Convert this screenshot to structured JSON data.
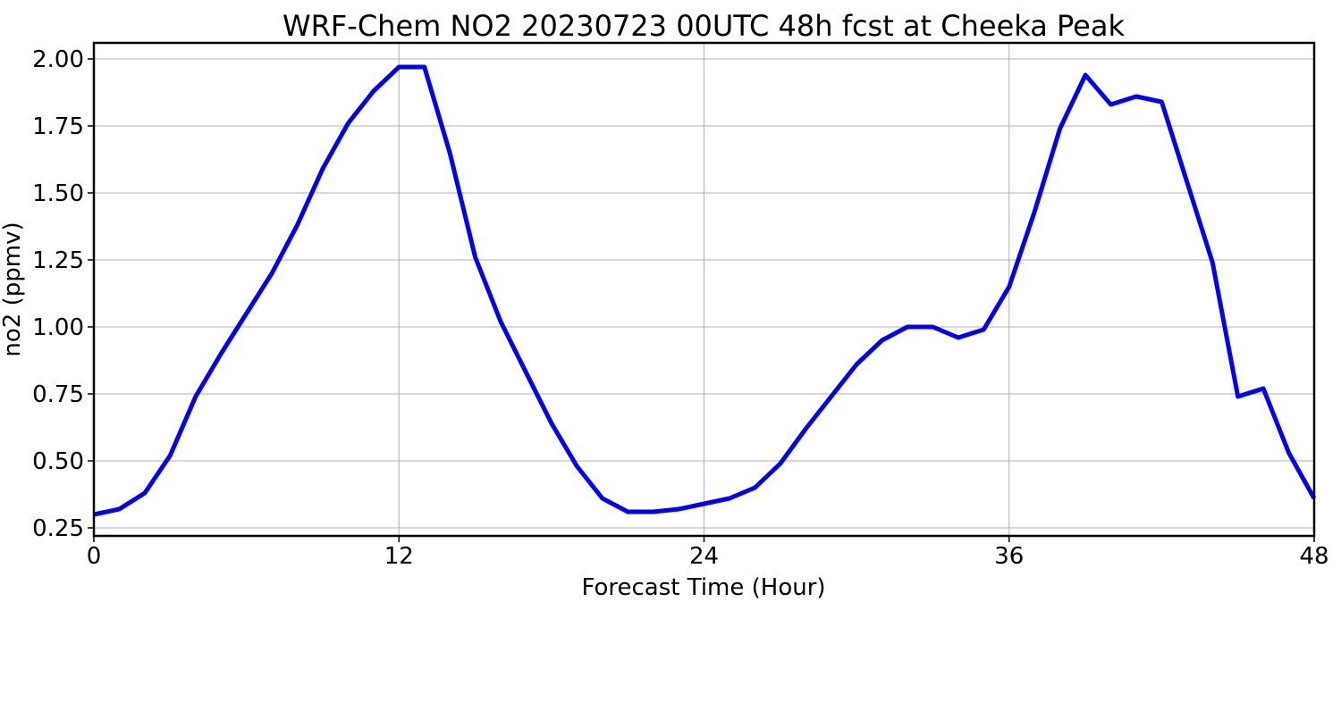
{
  "chart_data": {
    "type": "line",
    "title": "WRF-Chem NO2  20230723 00UTC 48h fcst at Cheeka Peak",
    "xlabel": "Forecast Time (Hour)",
    "ylabel": "no2  (ppmv)",
    "xlim": [
      0,
      48
    ],
    "ylim": [
      0.22,
      2.06
    ],
    "xticks": [
      0,
      12,
      24,
      36,
      48
    ],
    "xtick_labels": [
      "0",
      "12",
      "24",
      "36",
      "48"
    ],
    "yticks": [
      0.25,
      0.5,
      0.75,
      1.0,
      1.25,
      1.5,
      1.75,
      2.0
    ],
    "ytick_labels": [
      "0.25",
      "0.50",
      "0.75",
      "1.00",
      "1.25",
      "1.50",
      "1.75",
      "2.00"
    ],
    "grid": true,
    "series": [
      {
        "color": "#0000ff",
        "x": [
          0,
          1,
          2,
          3,
          4,
          5,
          6,
          7,
          8,
          9,
          10,
          11,
          12,
          13,
          14,
          15,
          16,
          17,
          18,
          19,
          20,
          21,
          22,
          23,
          24,
          25,
          26,
          27,
          28,
          29,
          30,
          31,
          32,
          33,
          34,
          35,
          36,
          37,
          38,
          39,
          40,
          41,
          42,
          43,
          44,
          45,
          46,
          47,
          48
        ],
        "y": [
          0.3,
          0.32,
          0.38,
          0.52,
          0.74,
          0.9,
          1.05,
          1.2,
          1.38,
          1.59,
          1.76,
          1.88,
          1.97,
          1.97,
          1.65,
          1.26,
          1.02,
          0.83,
          0.64,
          0.48,
          0.36,
          0.31,
          0.31,
          0.32,
          0.34,
          0.36,
          0.4,
          0.49,
          0.62,
          0.74,
          0.86,
          0.95,
          1.0,
          1.0,
          0.96,
          0.99,
          1.15,
          1.43,
          1.74,
          1.94,
          1.83,
          1.86,
          1.84,
          1.54,
          1.24,
          0.74,
          0.77,
          0.53,
          0.36
        ]
      }
    ]
  }
}
